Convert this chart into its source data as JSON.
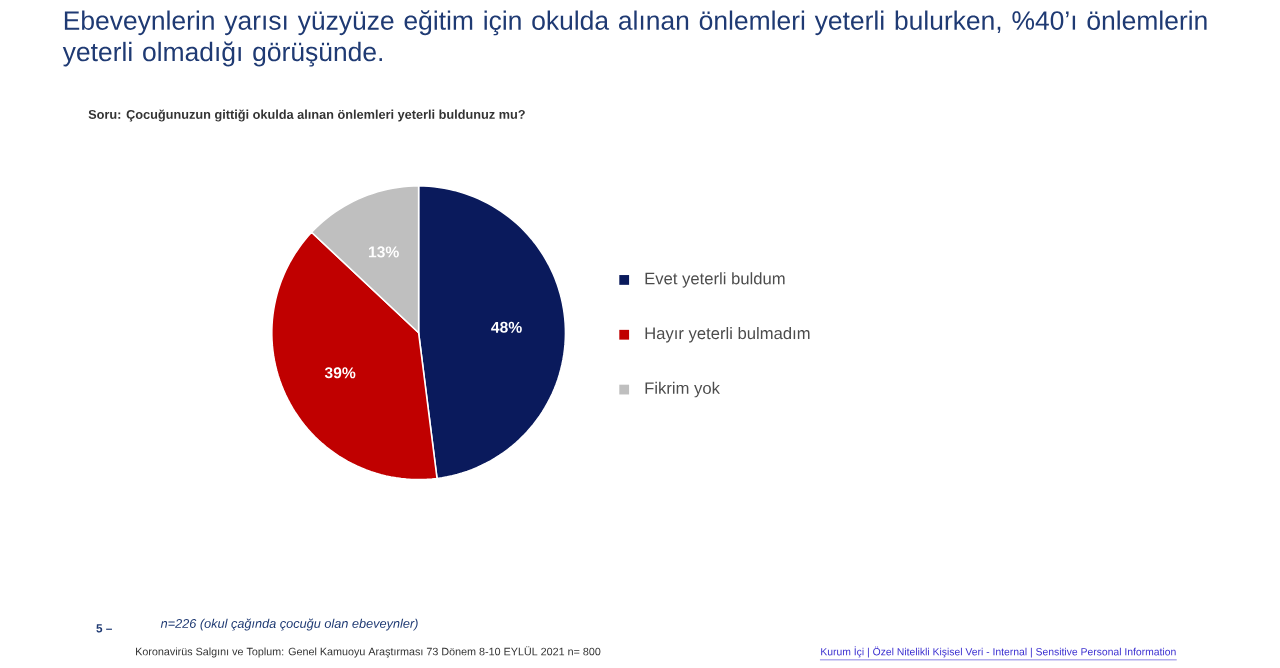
{
  "chart_data": {
    "type": "pie",
    "title": "Ebeveynlerin yarısı yüzyüze eğitim için okulda alınan önlemleri yeterli bulurken, %40’ı önlemlerin yeterli olmadığı görüşünde.",
    "subtitle": "Soru: Çocuğunuzun gittiği okulda alınan önlemleri yeterli buldunuz mu?",
    "categories": [
      "Evet yeterli buldum",
      "Hayır yeterli bulmadım",
      "Fikrim yok"
    ],
    "values": [
      48,
      39,
      13
    ],
    "value_labels": [
      "48%",
      "39%",
      "13%"
    ],
    "colors": [
      "#0a1a5c",
      "#c00000",
      "#bfbfbf"
    ],
    "legend": "right",
    "annotations": [
      "5 –",
      "n=226 (okul çağında çocuğu olan ebeveynler)",
      "Koronavirüs Salgını ve Toplum: Genel Kamuoyu Araştırması 73 Dönem 8-10 EYLÜL 2021 n= 800",
      "Kurum İçi | Özel Nitelikli Kişisel Veri - Internal | Sensitive Personal Information"
    ]
  }
}
